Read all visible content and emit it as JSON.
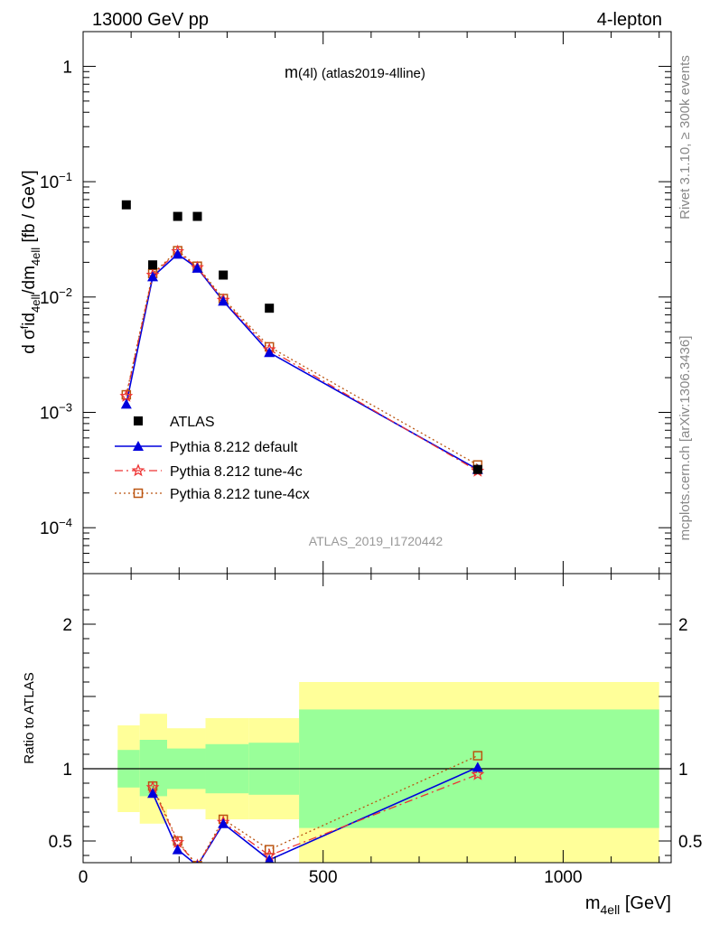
{
  "header": {
    "left": "13000 GeV pp",
    "right": "4-lepton"
  },
  "side_text": {
    "rivet": "Rivet 3.1.10, ≥ 300k events",
    "mcplots": "mcplots.cern.ch [arXiv:1306.3436]"
  },
  "watermark": "ATLAS_2019_I1720442",
  "colors": {
    "data": "#000000",
    "default": "#0000dd",
    "tune4c": "#ee3333",
    "tune4cx": "#bb5511",
    "band_inner": "#99ff99",
    "band_outer": "#ffff99"
  },
  "chart_data": [
    {
      "type": "scatter",
      "panel": "main",
      "title": "m(4l) (atlas2019-4lline)",
      "title_main": "m",
      "title_rest": "(4l) (atlas2019-4lline)",
      "ylabel": "d σᶠid_4ell/dm_4ell [fb / GeV]",
      "ylabel_parts": [
        "d σ",
        "f",
        "id",
        "4ell",
        "/dm",
        "4ell",
        " [fb / GeV]"
      ],
      "yscale": "log",
      "ylim": [
        4e-05,
        2
      ],
      "xlim": [
        0,
        1225
      ],
      "y_ticks": [
        {
          "v": 1,
          "base": "1",
          "exp": ""
        },
        {
          "v": 0.1,
          "base": "10",
          "exp": "−1"
        },
        {
          "v": 0.01,
          "base": "10",
          "exp": "−2"
        },
        {
          "v": 0.001,
          "base": "10",
          "exp": "−3"
        },
        {
          "v": 0.0001,
          "base": "10",
          "exp": "−4"
        }
      ],
      "legend": [
        "ATLAS",
        "Pythia 8.212 default",
        "Pythia 8.212 tune-4c",
        "Pythia 8.212 tune-4cx"
      ],
      "legend_position": "lower-left",
      "series": [
        {
          "name": "ATLAS",
          "marker": "square",
          "x": [
            90,
            145,
            197,
            238,
            292,
            388,
            822
          ],
          "y": [
            0.063,
            0.019,
            0.05,
            0.05,
            0.0155,
            0.008,
            0.00032
          ]
        },
        {
          "name": "Pythia 8.212 default",
          "marker": "triangle",
          "x": [
            90,
            145,
            197,
            238,
            292,
            388,
            822
          ],
          "y": [
            0.00118,
            0.015,
            0.0235,
            0.0178,
            0.0092,
            0.0033,
            0.00032
          ]
        },
        {
          "name": "Pythia 8.212 tune-4c",
          "marker": "star",
          "x": [
            90,
            145,
            197,
            238,
            292,
            388,
            822
          ],
          "y": [
            0.00138,
            0.0155,
            0.0248,
            0.018,
            0.0094,
            0.0035,
            0.00031
          ]
        },
        {
          "name": "Pythia 8.212 tune-4cx",
          "marker": "open-square",
          "x": [
            90,
            145,
            197,
            238,
            292,
            388,
            822
          ],
          "y": [
            0.00142,
            0.016,
            0.0252,
            0.0185,
            0.0097,
            0.0037,
            0.00035
          ]
        }
      ]
    },
    {
      "type": "line",
      "panel": "ratio",
      "ylabel": "Ratio to ATLAS",
      "ylim": [
        0.35,
        2.35
      ],
      "xlim": [
        0,
        1225
      ],
      "xlabel_parts": [
        "m",
        "4ell",
        " [GeV]"
      ],
      "x_ticks": [
        0,
        500,
        1000
      ],
      "y_ticks": [
        0.5,
        1,
        2
      ],
      "reference_line": 1,
      "bands": [
        {
          "x0": 72,
          "x1": 118,
          "inner": [
            0.87,
            1.13
          ],
          "outer": [
            0.7,
            1.3
          ]
        },
        {
          "x0": 118,
          "x1": 175,
          "inner": [
            0.81,
            1.2
          ],
          "outer": [
            0.62,
            1.38
          ]
        },
        {
          "x0": 175,
          "x1": 255,
          "inner": [
            0.86,
            1.14
          ],
          "outer": [
            0.72,
            1.28
          ]
        },
        {
          "x0": 255,
          "x1": 345,
          "inner": [
            0.83,
            1.17
          ],
          "outer": [
            0.65,
            1.35
          ]
        },
        {
          "x0": 345,
          "x1": 450,
          "inner": [
            0.82,
            1.18
          ],
          "outer": [
            0.65,
            1.35
          ]
        },
        {
          "x0": 450,
          "x1": 1200,
          "inner": [
            0.59,
            1.41
          ],
          "outer": [
            0.35,
            1.6
          ]
        }
      ],
      "series": [
        {
          "name": "Pythia 8.212 default",
          "x": [
            145,
            197,
            238,
            292,
            388,
            822
          ],
          "y": [
            0.83,
            0.44,
            0.33,
            0.62,
            0.37,
            1.01
          ]
        },
        {
          "name": "Pythia 8.212 tune-4c",
          "x": [
            145,
            197,
            238,
            292,
            388,
            822
          ],
          "y": [
            0.87,
            0.49,
            0.33,
            0.63,
            0.4,
            0.96
          ]
        },
        {
          "name": "Pythia 8.212 tune-4cx",
          "x": [
            145,
            197,
            238,
            292,
            388,
            822
          ],
          "y": [
            0.88,
            0.5,
            0.33,
            0.65,
            0.44,
            1.09
          ]
        }
      ]
    }
  ]
}
